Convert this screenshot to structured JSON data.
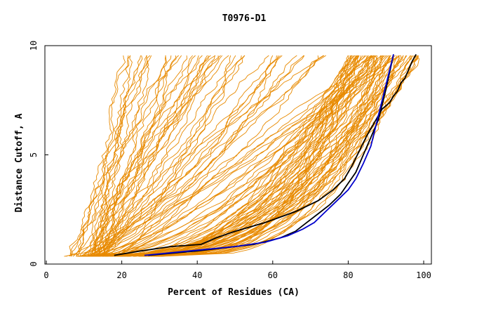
{
  "chart_data": {
    "type": "line",
    "title": "T0976-D1",
    "xlabel": "Percent of Residues (CA)",
    "ylabel": "Distance Cutoff, A",
    "xlim": [
      0,
      100
    ],
    "ylim": [
      0,
      10
    ],
    "xticks": [
      "0",
      "20",
      "40",
      "60",
      "80",
      "100"
    ],
    "yticks": [
      "0",
      "5",
      "10"
    ],
    "grid": false,
    "colors": {
      "background_models": "#E88A00",
      "highlight_black": "#000000",
      "highlight_blue": "#0000CC"
    },
    "background_model_count": 120,
    "highlight_series": [
      {
        "color": "black",
        "x": [
          18,
          25,
          33,
          41,
          45,
          50,
          58,
          66,
          72,
          76,
          79,
          81,
          83,
          85,
          87,
          89,
          91,
          92,
          93,
          94,
          95,
          96,
          97,
          98
        ],
        "y": [
          0.4,
          0.6,
          0.8,
          0.9,
          1.2,
          1.5,
          1.9,
          2.4,
          2.9,
          3.4,
          3.9,
          4.5,
          5.2,
          5.9,
          6.5,
          7.1,
          7.4,
          7.7,
          7.9,
          8.3,
          8.5,
          8.9,
          9.3,
          9.6
        ]
      },
      {
        "color": "black",
        "x": [
          27,
          40,
          55,
          62,
          66,
          69,
          72,
          75,
          78,
          80,
          82,
          84,
          86,
          88,
          89,
          90,
          91,
          92
        ],
        "y": [
          0.4,
          0.6,
          0.9,
          1.2,
          1.5,
          1.9,
          2.3,
          2.7,
          3.2,
          3.7,
          4.2,
          5.0,
          5.8,
          6.6,
          7.3,
          8.0,
          8.8,
          9.6
        ]
      },
      {
        "color": "blue",
        "x": [
          26,
          38,
          50,
          58,
          64,
          68,
          71,
          74,
          77,
          80,
          82,
          84,
          86,
          87,
          88,
          89,
          90,
          91,
          92
        ],
        "y": [
          0.4,
          0.6,
          0.8,
          1.0,
          1.3,
          1.6,
          1.9,
          2.4,
          2.9,
          3.4,
          3.9,
          4.6,
          5.4,
          6.1,
          6.8,
          7.5,
          8.2,
          8.9,
          9.6
        ]
      }
    ]
  }
}
